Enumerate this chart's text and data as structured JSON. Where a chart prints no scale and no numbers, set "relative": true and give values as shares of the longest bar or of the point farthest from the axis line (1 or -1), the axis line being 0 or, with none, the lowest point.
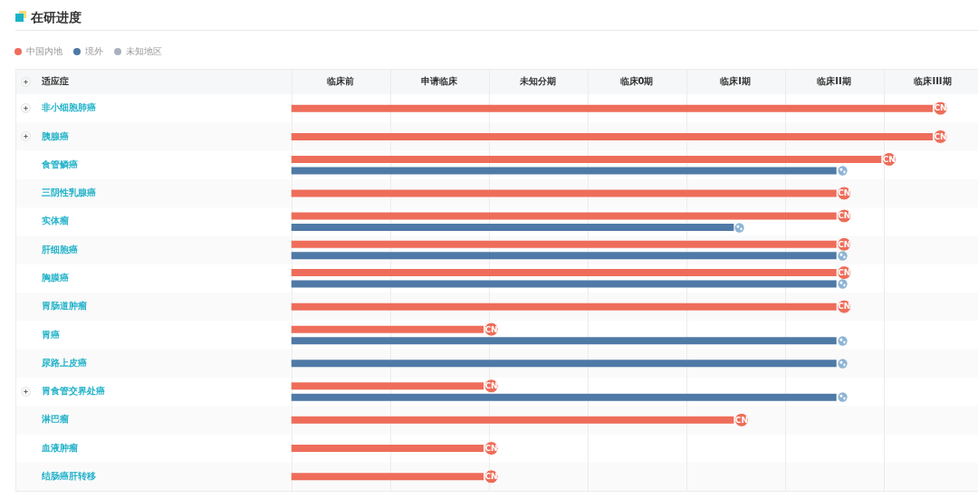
{
  "chart_data": {
    "type": "bar",
    "orientation": "horizontal",
    "relative": true,
    "title": "在研进度",
    "ylabel": "适应症",
    "categories": [
      "非小细胞肺癌",
      "胰腺癌",
      "食管鳞癌",
      "三阴性乳腺癌",
      "实体瘤",
      "肝细胞癌",
      "胸膜癌",
      "胃肠道肿瘤",
      "胃癌",
      "尿路上皮癌",
      "胃食管交界处癌",
      "淋巴瘤",
      "血液肿瘤",
      "结肠癌肝转移"
    ],
    "series": [
      {
        "name": "中国内地",
        "color": "#ee6d5a",
        "values": [
          1,
          1,
          0.92,
          0.85,
          0.85,
          0.85,
          0.85,
          0.85,
          0.3,
          null,
          0.3,
          0.69,
          0.3,
          0.3
        ]
      },
      {
        "name": "境外",
        "color": "#4f79a6",
        "values": [
          null,
          null,
          0.85,
          null,
          0.69,
          0.85,
          0.85,
          null,
          0.85,
          0.85,
          0.85,
          null,
          null,
          null
        ]
      },
      {
        "name": "未知地区",
        "color": "#a9b1bf",
        "values": [
          null,
          null,
          null,
          null,
          null,
          null,
          null,
          null,
          null,
          null,
          null,
          null,
          null,
          null
        ]
      }
    ],
    "annotations": [
      "临床前",
      "申请临床",
      "未知分期",
      "临床0期",
      "临床I期",
      "临床II期",
      "临床III期",
      {
        "text": "CN",
        "x": 1,
        "y": "非小细胞肺癌"
      },
      {
        "text": "CN",
        "x": 1,
        "y": "胰腺癌"
      },
      {
        "text": "CN",
        "x": 0.92,
        "y": "食管鳞癌"
      },
      {
        "text": "CN",
        "x": 0.85,
        "y": "三阴性乳腺癌"
      },
      {
        "text": "CN",
        "x": 0.85,
        "y": "实体瘤"
      },
      {
        "text": "CN",
        "x": 0.85,
        "y": "肝细胞癌"
      },
      {
        "text": "CN",
        "x": 0.85,
        "y": "胸膜癌"
      },
      {
        "text": "CN",
        "x": 0.85,
        "y": "胃肠道肿瘤"
      },
      {
        "text": "CN",
        "x": 0.3,
        "y": "胃癌"
      },
      {
        "text": "CN",
        "x": 0.3,
        "y": "胃食管交界处癌"
      },
      {
        "text": "CN",
        "x": 0.69,
        "y": "淋巴瘤"
      },
      {
        "text": "CN",
        "x": 0.3,
        "y": "血液肿瘤"
      },
      {
        "text": "CN",
        "x": 0.3,
        "y": "结肠癌肝转移"
      }
    ],
    "legend": "top left"
  }
}
